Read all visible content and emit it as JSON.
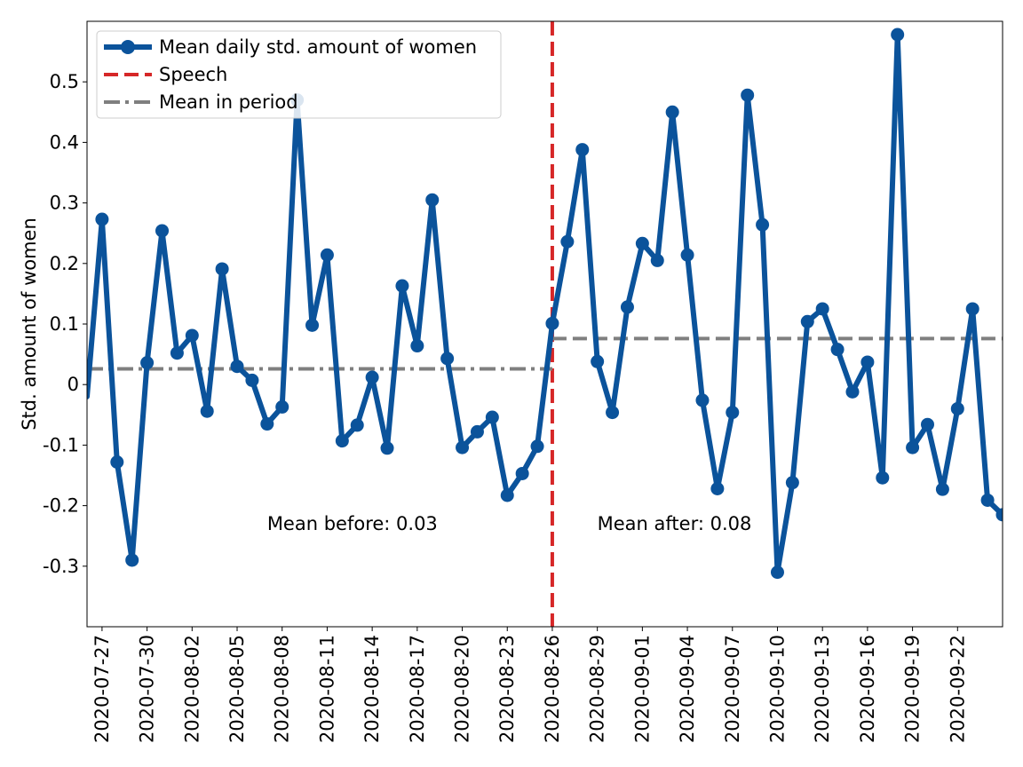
{
  "chart_data": {
    "type": "line",
    "xlabel": "",
    "ylabel": "Std. amount of women",
    "ylim": [
      -0.4,
      0.6
    ],
    "yticks": [
      -0.3,
      -0.2,
      -0.1,
      0,
      0.1,
      0.2,
      0.3,
      0.4,
      0.5
    ],
    "ytick_labels": [
      "-0.3",
      "-0.2",
      "-0.1",
      "0",
      "0.1",
      "0.2",
      "0.3",
      "0.4",
      "0.5"
    ],
    "xlim": [
      "2020-07-26",
      "2020-09-25"
    ],
    "xtick_labels": [
      "2020-07-27",
      "2020-07-30",
      "2020-08-02",
      "2020-08-05",
      "2020-08-08",
      "2020-08-11",
      "2020-08-14",
      "2020-08-17",
      "2020-08-20",
      "2020-08-23",
      "2020-08-26",
      "2020-08-29",
      "2020-09-01",
      "2020-09-04",
      "2020-09-07",
      "2020-09-10",
      "2020-09-13",
      "2020-09-16",
      "2020-09-19",
      "2020-09-22"
    ],
    "grid": false,
    "legend_position": "top-left",
    "series": [
      {
        "name": "Mean daily std. amount of women",
        "color": "#0b539b",
        "x": [
          "2020-07-26",
          "2020-07-27",
          "2020-07-28",
          "2020-07-29",
          "2020-07-30",
          "2020-07-31",
          "2020-08-01",
          "2020-08-02",
          "2020-08-03",
          "2020-08-04",
          "2020-08-05",
          "2020-08-06",
          "2020-08-07",
          "2020-08-08",
          "2020-08-09",
          "2020-08-10",
          "2020-08-11",
          "2020-08-12",
          "2020-08-13",
          "2020-08-14",
          "2020-08-15",
          "2020-08-16",
          "2020-08-17",
          "2020-08-18",
          "2020-08-19",
          "2020-08-20",
          "2020-08-21",
          "2020-08-22",
          "2020-08-23",
          "2020-08-24",
          "2020-08-25",
          "2020-08-26",
          "2020-08-27",
          "2020-08-28",
          "2020-08-29",
          "2020-08-30",
          "2020-08-31",
          "2020-09-01",
          "2020-09-02",
          "2020-09-03",
          "2020-09-04",
          "2020-09-05",
          "2020-09-06",
          "2020-09-07",
          "2020-09-08",
          "2020-09-09",
          "2020-09-10",
          "2020-09-11",
          "2020-09-12",
          "2020-09-13",
          "2020-09-14",
          "2020-09-15",
          "2020-09-16",
          "2020-09-17",
          "2020-09-18",
          "2020-09-19",
          "2020-09-20",
          "2020-09-21",
          "2020-09-22",
          "2020-09-23",
          "2020-09-24",
          "2020-09-25"
        ],
        "values": [
          -0.02,
          0.273,
          -0.128,
          -0.29,
          0.036,
          0.254,
          0.052,
          0.081,
          -0.044,
          0.191,
          0.03,
          0.007,
          -0.065,
          -0.037,
          0.47,
          0.098,
          0.214,
          -0.093,
          -0.067,
          0.012,
          -0.105,
          0.163,
          0.064,
          0.305,
          0.043,
          -0.104,
          -0.078,
          -0.054,
          -0.183,
          -0.147,
          -0.102,
          0.101,
          0.236,
          0.388,
          0.038,
          -0.046,
          0.128,
          0.233,
          0.205,
          0.45,
          0.214,
          -0.026,
          -0.172,
          -0.046,
          0.478,
          0.264,
          -0.31,
          -0.162,
          0.104,
          0.125,
          0.058,
          -0.012,
          0.037,
          -0.154,
          0.578,
          -0.104,
          -0.066,
          -0.173,
          -0.04,
          0.125,
          -0.191,
          -0.215
        ],
        "markers_from_index": 1
      }
    ],
    "lines": [
      {
        "name": "Speech",
        "type": "vertical",
        "x": "2020-08-26",
        "color": "#d62728",
        "style": "dashed"
      },
      {
        "name": "Mean in period",
        "type": "segment",
        "x": [
          "2020-07-26",
          "2020-08-26"
        ],
        "y": 0.026,
        "color": "#7f7f7f",
        "style": "dashdot"
      },
      {
        "name": "Mean in period",
        "type": "segment",
        "x": [
          "2020-08-26",
          "2020-09-25"
        ],
        "y": 0.076,
        "color": "#7f7f7f",
        "style": "dashed"
      }
    ],
    "annotations": [
      {
        "text": "Mean before: 0.03",
        "x": "2020-08-07",
        "y": -0.23
      },
      {
        "text": "Mean after: 0.08",
        "x": "2020-08-29",
        "y": -0.23
      }
    ],
    "legend": [
      {
        "label": "Mean daily std. amount of women",
        "color": "#0b539b",
        "style": "line-marker"
      },
      {
        "label": "Speech",
        "color": "#d62728",
        "style": "dashed"
      },
      {
        "label": "Mean in period",
        "color": "#7f7f7f",
        "style": "dashdot"
      }
    ]
  }
}
